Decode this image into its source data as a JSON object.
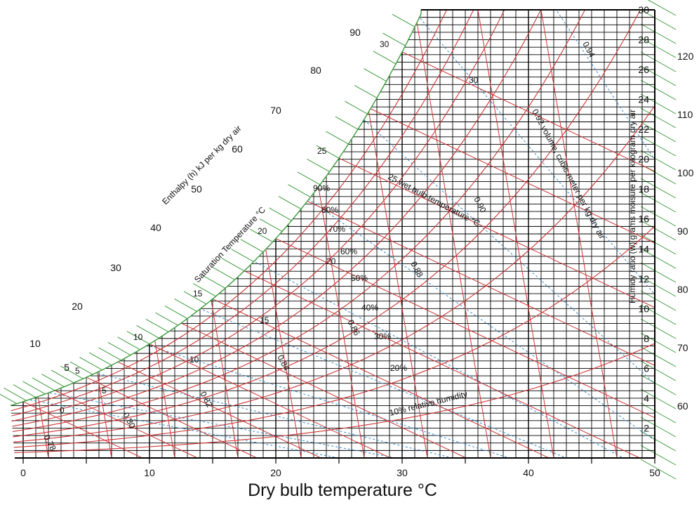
{
  "chart_data": {
    "type": "psychrometric",
    "xlabel": "Dry bulb temperature °C",
    "x_ticks": [
      0,
      10,
      20,
      30,
      40,
      50
    ],
    "xlim": [
      0,
      50
    ],
    "ylim": [
      0,
      30
    ],
    "humidity_ratio_label": "Humidy ratio (w) grams moisure per kilogram dry air",
    "humidity_ratio_ticks": [
      2,
      4,
      6,
      8,
      10,
      12,
      14,
      16,
      18,
      20,
      22,
      24,
      26,
      28,
      30
    ],
    "enthalpy_label": "Enthalpy (h) kJ per kg dry air",
    "enthalpy_ticks": [
      5,
      10,
      20,
      30,
      40,
      50,
      60,
      70,
      80,
      90,
      100
    ],
    "enthalpy_right_ticks": [
      60,
      70,
      80,
      90,
      100,
      110,
      120
    ],
    "saturation_label": "Saturation Temperature °C",
    "saturation_ticks": [
      0,
      5,
      10,
      15,
      20,
      25,
      30
    ],
    "wet_bulb_label": "25 wet bulb temperature °C",
    "wet_bulb_ticks": [
      "5",
      "10",
      "15",
      "20",
      "30"
    ],
    "rh_label": "10% relative humidity",
    "rh_series": [
      "20%",
      "30%",
      "40%",
      "50%",
      "60%",
      "70%",
      "80%",
      "90%"
    ],
    "volume_label": "0.92 volume, cubic meter per kg dry air",
    "volume_ticks": [
      "0.78",
      "0.80",
      "0.82",
      "0.84",
      "0.86",
      "0.88",
      "0.90",
      "0.94"
    ],
    "colors": {
      "grid": "#000000",
      "enthalpy": "#3a9a3a",
      "relative_humidity": "#cc3333",
      "wet_bulb": "#cc3333",
      "volume": "#cc3333",
      "dotted_humidity": "#3388cc"
    }
  }
}
